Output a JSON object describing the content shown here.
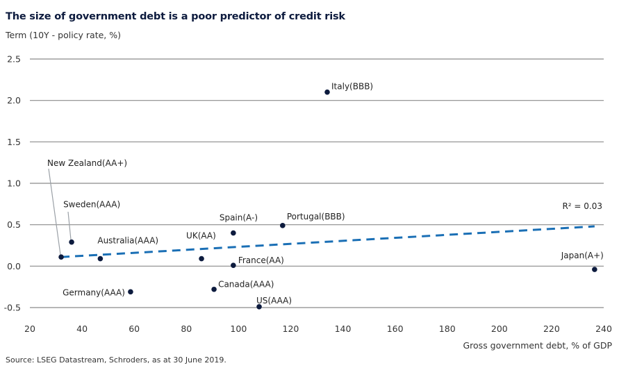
{
  "chart_data": {
    "type": "scatter",
    "title": "The size of government debt is a poor predictor of credit risk",
    "ylabel": "Term (10Y - policy rate, %)",
    "xlabel": "Gross government debt, % of GDP",
    "source": "Source: LSEG Datastream, Schroders, as at 30 June 2019.",
    "xlim": [
      20,
      240
    ],
    "ylim": [
      -0.5,
      2.5
    ],
    "x_ticks": [
      20,
      40,
      60,
      80,
      100,
      120,
      140,
      160,
      180,
      200,
      220,
      240
    ],
    "y_ticks": [
      2.5,
      2.0,
      1.5,
      1.0,
      0.5,
      0.0,
      -0.5
    ],
    "y_tick_labels": [
      "2.5",
      "2.0",
      "1.5",
      "1.0",
      "0.5",
      "0.0",
      "-0.5"
    ],
    "grid": "horizontal",
    "points": [
      {
        "label": "New Zealand(AA+)",
        "x": 32,
        "y": 0.11
      },
      {
        "label": "Sweden(AAA)",
        "x": 36,
        "y": 0.29
      },
      {
        "label": "Australia(AAA)",
        "x": 47,
        "y": 0.09
      },
      {
        "label": "Germany(AAA)",
        "x": 58.6,
        "y": -0.31
      },
      {
        "label": "UK(AA)",
        "x": 85.8,
        "y": 0.09
      },
      {
        "label": "Canada(AAA)",
        "x": 90.6,
        "y": -0.28
      },
      {
        "label": "Spain(A-)",
        "x": 98,
        "y": 0.4
      },
      {
        "label": "France(AA)",
        "x": 98,
        "y": 0.01
      },
      {
        "label": "US(AAA)",
        "x": 107.9,
        "y": -0.49
      },
      {
        "label": "Portugal(BBB)",
        "x": 116.9,
        "y": 0.49
      },
      {
        "label": "Italy(BBB)",
        "x": 134,
        "y": 2.1
      },
      {
        "label": "Japan(A+)",
        "x": 236.5,
        "y": -0.04
      }
    ],
    "trendline": {
      "x": [
        32,
        236.5
      ],
      "y": [
        0.11,
        0.48
      ],
      "style": "dashed",
      "label": "R² = 0.03"
    },
    "colors": {
      "points": "#0d1b3e",
      "trend": "#1a6fb5",
      "grid": "#8a8a8a",
      "leader": "#9aa0a6"
    }
  }
}
